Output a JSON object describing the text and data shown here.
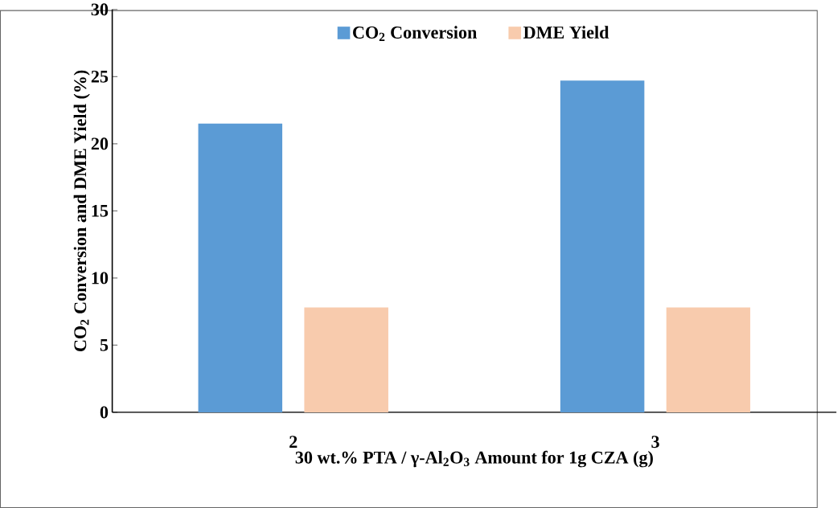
{
  "chart_data": {
    "type": "bar",
    "xlabel": "30 wt.% PTA / γ-Al$_{2}$O$_{3}$ Amount for 1g CZA (g)",
    "ylabel": "CO$_{2}$ Conversion and DME Yield (%)",
    "categories": [
      "2",
      "3"
    ],
    "series": [
      {
        "name": "CO$_{2}$ Conversion",
        "color": "#5b9bd5",
        "values": [
          21.5,
          24.7
        ]
      },
      {
        "name": "DME Yield",
        "color": "#f8cbad",
        "values": [
          7.8,
          7.8
        ]
      }
    ],
    "ylim": [
      0,
      30
    ],
    "yticks": [
      0,
      5,
      10,
      15,
      20,
      25,
      30
    ],
    "legend": "top",
    "grid": false
  }
}
